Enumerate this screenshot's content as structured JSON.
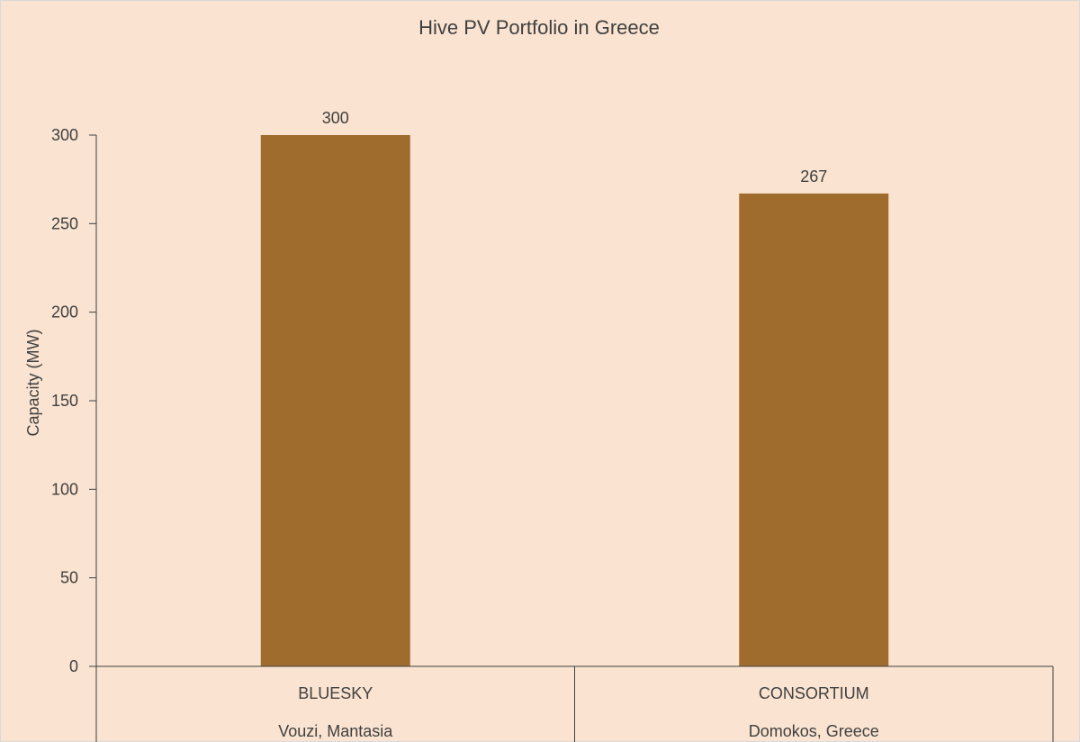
{
  "colors": {
    "background": "#fae3d0",
    "bar": "#a06c2e",
    "text": "#404040",
    "axis": "#404040",
    "border": "#d9d9d9"
  },
  "chart_data": {
    "type": "bar",
    "title": "Hive PV Portfolio in Greece",
    "xlabel": "",
    "ylabel": "Capacity (MW)",
    "ylim": [
      0,
      300
    ],
    "yticks": [
      0,
      50,
      100,
      150,
      200,
      250,
      300
    ],
    "grid": false,
    "categories": [
      "BLUESKY",
      "CONSORTIUM"
    ],
    "subcategories": [
      "Vouzi, Mantasia",
      "Domokos, Greece"
    ],
    "values": [
      300,
      267
    ],
    "data_labels": [
      "300",
      "267"
    ]
  }
}
